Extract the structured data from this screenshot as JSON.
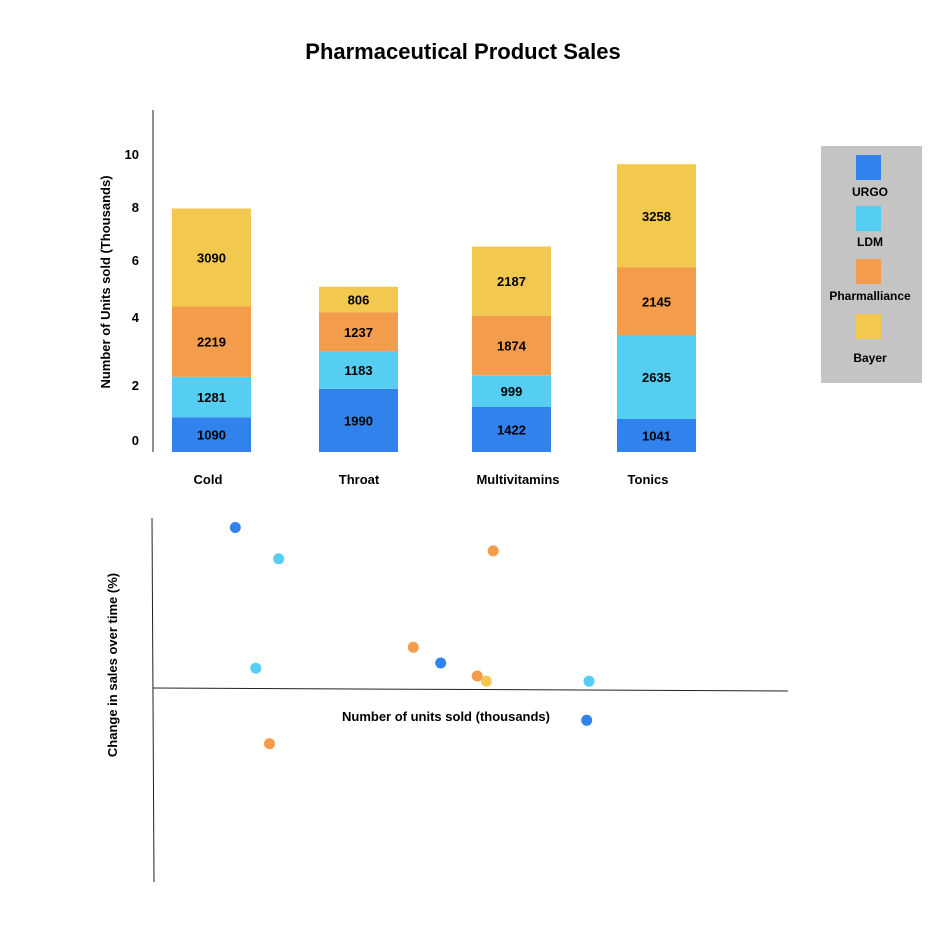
{
  "title": "Pharmaceutical Product Sales",
  "chart_data": [
    {
      "type": "bar",
      "stacked": true,
      "ylabel": "Number of Units sold  (Thousands)",
      "yticks": [
        "0",
        "2",
        "4",
        "6",
        "8",
        "10"
      ],
      "categories": [
        "Cold",
        "Throat",
        "Multivitamins",
        "Tonics"
      ],
      "series": [
        {
          "name": "URGO",
          "color": "#3182ed",
          "values": [
            1090,
            1990,
            1422,
            1041
          ]
        },
        {
          "name": "LDM",
          "color": "#56cdf2",
          "values": [
            1281,
            1183,
            999,
            2635
          ]
        },
        {
          "name": "Pharmalliance",
          "color": "#f39c4c",
          "values": [
            2219,
            1237,
            1874,
            2145
          ]
        },
        {
          "name": "Bayer",
          "color": "#f2c84e",
          "values": [
            3090,
            806,
            2187,
            3258
          ]
        }
      ],
      "legend": {
        "position": "right",
        "background": "#c4c4c4"
      }
    },
    {
      "type": "scatter",
      "xlabel": "Number of units sold (thousands)",
      "ylabel": "Change in sales over time (%)",
      "points": [
        {
          "series": "URGO",
          "x": 1.09,
          "y": 62
        },
        {
          "series": "LDM",
          "x": 1.28,
          "y": 50
        },
        {
          "series": "Pharmalliance",
          "x": 2.22,
          "y": 53
        },
        {
          "series": "Pharmalliance",
          "x": 1.24,
          "y": -21
        },
        {
          "series": "LDM",
          "x": 1.18,
          "y": 8
        },
        {
          "series": "Pharmalliance",
          "x": 1.87,
          "y": 16
        },
        {
          "series": "Bayer",
          "x": 2.19,
          "y": 3
        },
        {
          "series": "Pharmalliance",
          "x": 2.15,
          "y": 5
        },
        {
          "series": "URGO",
          "x": 1.99,
          "y": 10
        },
        {
          "series": "LDM",
          "x": 2.64,
          "y": 3
        },
        {
          "series": "URGO",
          "x": 2.63,
          "y": -12
        }
      ]
    }
  ]
}
